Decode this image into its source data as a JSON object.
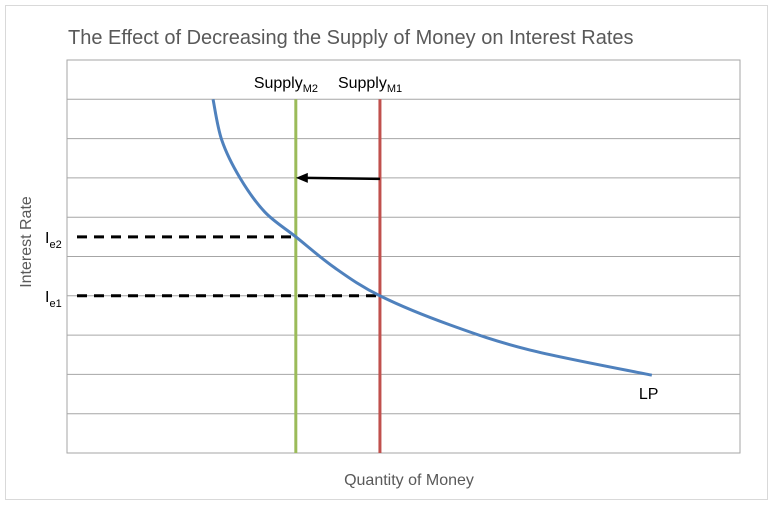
{
  "chart_data": {
    "type": "line",
    "title": "The Effect of Decreasing the Supply of Money on Interest Rates",
    "xlabel": "Quantity of Money",
    "ylabel": "Interest Rate",
    "xlim": [
      0,
      100
    ],
    "ylim": [
      0,
      10
    ],
    "grid": {
      "horizontal": true,
      "vertical": false
    },
    "legend": "none",
    "series": [
      {
        "name": "LP",
        "color": "#4f81bd",
        "x": [
          21.7,
          23.0,
          25.7,
          29.4,
          34.0,
          39.8,
          46.5,
          56.9,
          68.8,
          86.9
        ],
        "y": [
          9.0,
          7.96,
          7.0,
          6.13,
          5.5,
          4.71,
          4.0,
          3.26,
          2.62,
          1.98
        ]
      }
    ],
    "vertical_lines": [
      {
        "label_main": "Supply",
        "label_sub": "M2",
        "x": 34.0,
        "y_range": [
          0,
          9
        ],
        "color": "#9bbb59"
      },
      {
        "label_main": "Supply",
        "label_sub": "M1",
        "x": 46.5,
        "y_range": [
          0,
          9
        ],
        "color": "#c0504d"
      }
    ],
    "equilibria": [
      {
        "label_main": "I",
        "label_sub": "e2",
        "y": 5.5,
        "x": 34.0
      },
      {
        "label_main": "I",
        "label_sub": "e1",
        "y": 4.0,
        "x": 46.5
      }
    ],
    "arrow": {
      "from_x": 46.5,
      "to_x": 34.0,
      "y": 7.0,
      "color": "#000000"
    }
  }
}
